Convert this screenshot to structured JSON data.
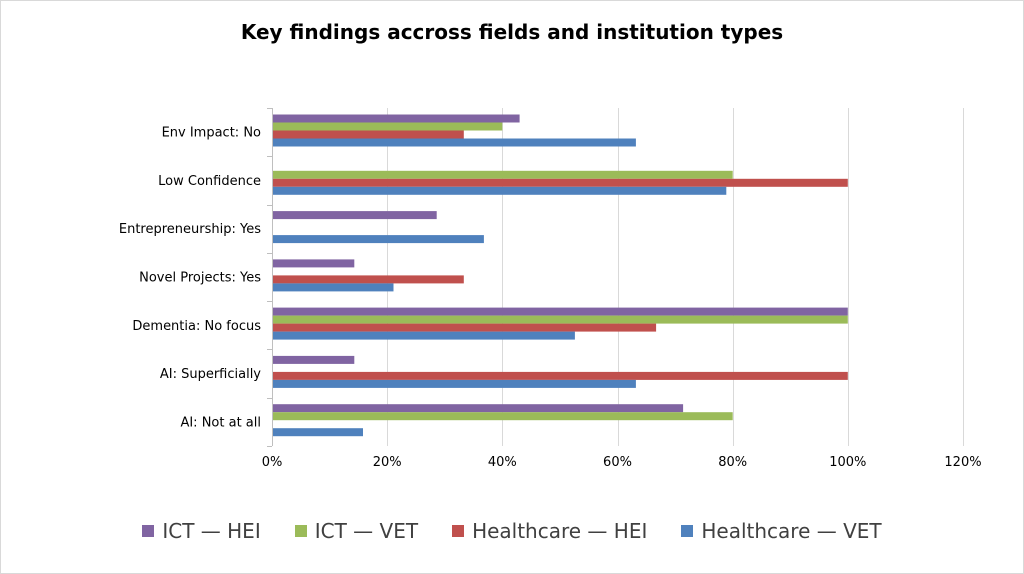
{
  "chart_data": {
    "type": "bar",
    "orientation": "horizontal",
    "title": "Key findings accross fields and institution types",
    "xlabel": "",
    "ylabel": "",
    "categories": [
      "Env Impact: No",
      "Low Confidence",
      "Entrepreneurship: Yes",
      "Novel Projects: Yes",
      "Dementia: No focus",
      "AI: Superficially",
      "AI: Not at all"
    ],
    "xlim": [
      0,
      1.2
    ],
    "x_ticks": [
      0,
      0.2,
      0.4,
      0.6,
      0.8,
      1.0,
      1.2
    ],
    "x_tick_labels": [
      "0%",
      "20%",
      "40%",
      "60%",
      "80%",
      "100%",
      "120%"
    ],
    "grid": "vertical",
    "legend_position": "bottom",
    "series": [
      {
        "name": "ICT — HEI",
        "color": "#8064a2",
        "values": [
          0.43,
          0,
          0.286,
          0.143,
          1.0,
          0.143,
          0.714
        ]
      },
      {
        "name": "ICT — VET",
        "color": "#9bbb59",
        "values": [
          0.4,
          0.8,
          0,
          0,
          1.0,
          0,
          0.8
        ]
      },
      {
        "name": "Healthcare — HEI",
        "color": "#c0504d",
        "values": [
          0.333,
          1.0,
          0,
          0.333,
          0.667,
          1.0,
          0
        ]
      },
      {
        "name": "Healthcare — VET",
        "color": "#4f81bd",
        "values": [
          0.632,
          0.789,
          0.368,
          0.211,
          0.526,
          0.632,
          0.158
        ]
      }
    ]
  }
}
